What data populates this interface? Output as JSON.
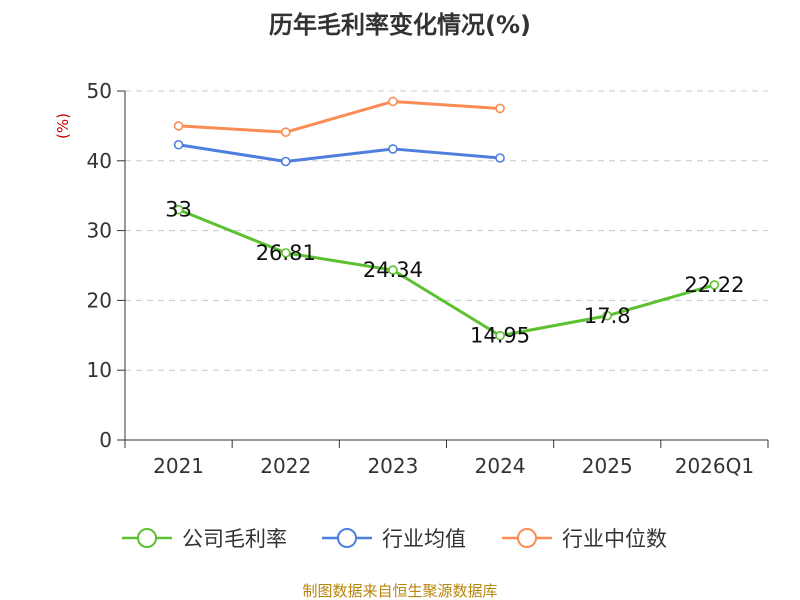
{
  "chart_data": {
    "type": "line",
    "title": "历年毛利率变化情况(%)",
    "ylabel": "(%)",
    "categories": [
      "2021",
      "2022",
      "2023",
      "2024",
      "2025",
      "2026Q1"
    ],
    "ylim": [
      0,
      50
    ],
    "yticks": [
      0,
      10,
      20,
      30,
      40,
      50
    ],
    "grid": true,
    "legend_position": "bottom",
    "series": [
      {
        "name": "公司毛利率",
        "color": "#5cc130",
        "values": [
          33,
          26.81,
          24.34,
          14.95,
          17.8,
          22.22
        ],
        "labels": [
          "33",
          "26.81",
          "24.34",
          "14.95",
          "17.8",
          "22.22"
        ]
      },
      {
        "name": "行业均值",
        "color": "#4f7fde",
        "values": [
          42.3,
          39.9,
          41.7,
          40.4,
          null,
          null
        ]
      },
      {
        "name": "行业中位数",
        "color": "#fb8c55",
        "values": [
          45.0,
          44.1,
          48.5,
          47.5,
          null,
          null
        ]
      }
    ],
    "source": "制图数据来自恒生聚源数据库"
  }
}
